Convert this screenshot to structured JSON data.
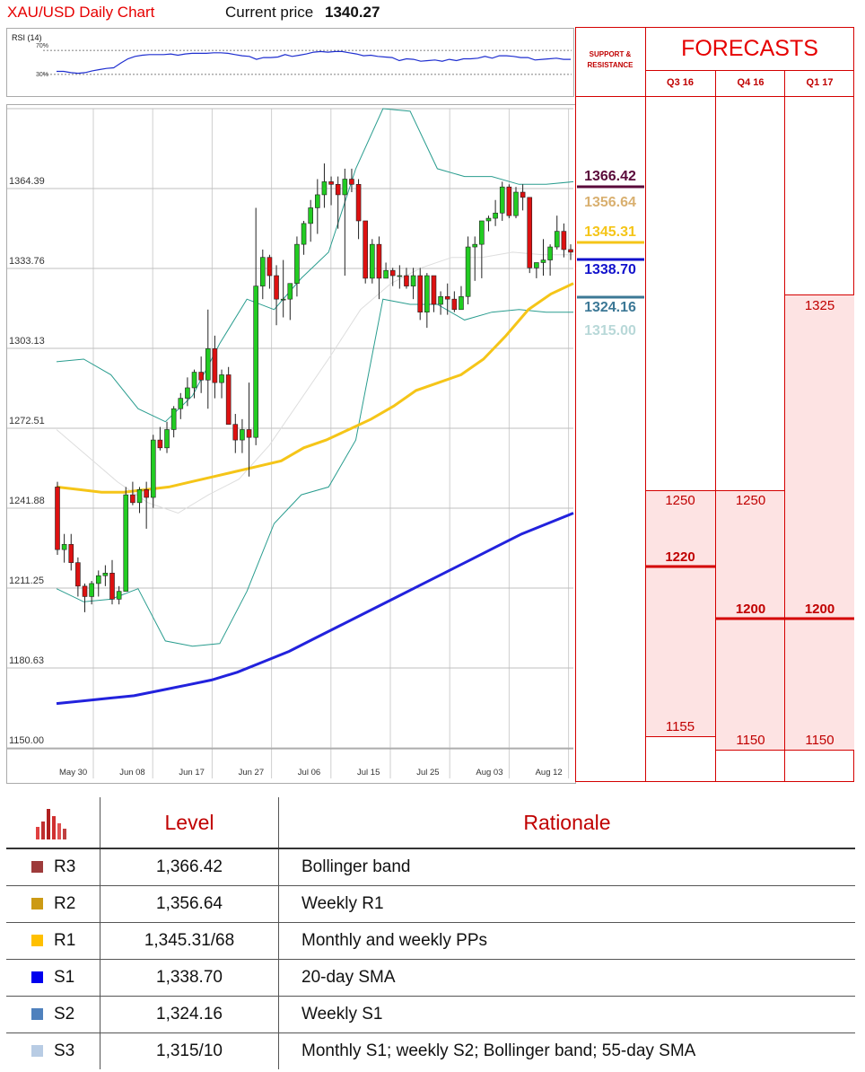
{
  "header": {
    "title": "XAU/USD Daily Chart",
    "price_label": "Current price",
    "price_value": "1340.27"
  },
  "chart_data": [
    {
      "type": "line",
      "title": "RSI (14)",
      "ylim": [
        0,
        100
      ],
      "levels": [
        {
          "label": "70%",
          "value": 70
        },
        {
          "label": "30%",
          "value": 30
        }
      ],
      "series": [
        {
          "name": "RSI (14)",
          "values": [
            35,
            35,
            33,
            32,
            33,
            36,
            38,
            40,
            41,
            49,
            56,
            60,
            62,
            63,
            63,
            63,
            64,
            62,
            64,
            65,
            65,
            65,
            66,
            66,
            65,
            63,
            61,
            60,
            55,
            58,
            58,
            59,
            63,
            60,
            62,
            64,
            67,
            68,
            67,
            68,
            68,
            66,
            64,
            61,
            62,
            60,
            59,
            58,
            53,
            56,
            55,
            52,
            53,
            54,
            52,
            55,
            53,
            56,
            56,
            57,
            60,
            57,
            61,
            61,
            60,
            58,
            58,
            54,
            55,
            56,
            57,
            55,
            55
          ]
        }
      ],
      "color": "#1f2fd0"
    },
    {
      "type": "candlestick",
      "title": "XAU/USD Daily Chart",
      "ylim": [
        1150.0,
        1395.01
      ],
      "yticks": [
        "1395.01",
        "1364.39",
        "1333.76",
        "1303.13",
        "1272.51",
        "1241.88",
        "1211.25",
        "1180.63",
        "1150.00"
      ],
      "xticks": [
        "May 30",
        "Jun 08",
        "Jun 17",
        "Jun 27",
        "Jul 06",
        "Jul 15",
        "Jul 25",
        "Aug 03",
        "Aug 12"
      ],
      "candles": [
        [
          1250,
          1252,
          1224,
          1226
        ],
        [
          1226,
          1232,
          1221,
          1228
        ],
        [
          1228,
          1232,
          1218,
          1221
        ],
        [
          1221,
          1223,
          1208,
          1212
        ],
        [
          1212,
          1213,
          1202,
          1208
        ],
        [
          1208,
          1214,
          1205,
          1213
        ],
        [
          1213,
          1218,
          1208,
          1216
        ],
        [
          1216,
          1220,
          1212,
          1217
        ],
        [
          1217,
          1222,
          1205,
          1207
        ],
        [
          1207,
          1212,
          1205,
          1210
        ],
        [
          1210,
          1250,
          1210,
          1247
        ],
        [
          1247,
          1252,
          1243,
          1244
        ],
        [
          1244,
          1250,
          1240,
          1249
        ],
        [
          1249,
          1252,
          1234,
          1246
        ],
        [
          1246,
          1270,
          1242,
          1268
        ],
        [
          1268,
          1273,
          1264,
          1265
        ],
        [
          1265,
          1275,
          1263,
          1272
        ],
        [
          1272,
          1281,
          1269,
          1280
        ],
        [
          1280,
          1286,
          1276,
          1284
        ],
        [
          1284,
          1292,
          1281,
          1288
        ],
        [
          1288,
          1295,
          1284,
          1294
        ],
        [
          1294,
          1300,
          1286,
          1291
        ],
        [
          1291,
          1318,
          1280,
          1303
        ],
        [
          1303,
          1308,
          1284,
          1290
        ],
        [
          1290,
          1295,
          1284,
          1293
        ],
        [
          1293,
          1296,
          1274,
          1274
        ],
        [
          1274,
          1278,
          1263,
          1268
        ],
        [
          1268,
          1276,
          1263,
          1272
        ],
        [
          1272,
          1290,
          1254,
          1269
        ],
        [
          1269,
          1357,
          1266,
          1327
        ],
        [
          1327,
          1341,
          1322,
          1338
        ],
        [
          1338,
          1339,
          1326,
          1331
        ],
        [
          1331,
          1335,
          1312,
          1322
        ],
        [
          1322,
          1337,
          1315,
          1322
        ],
        [
          1322,
          1328,
          1314,
          1328
        ],
        [
          1328,
          1346,
          1323,
          1343
        ],
        [
          1343,
          1352,
          1339,
          1351
        ],
        [
          1351,
          1360,
          1344,
          1357
        ],
        [
          1357,
          1368,
          1347,
          1362
        ],
        [
          1362,
          1374,
          1357,
          1367
        ],
        [
          1367,
          1369,
          1358,
          1366
        ],
        [
          1366,
          1369,
          1349,
          1362
        ],
        [
          1362,
          1372,
          1331,
          1368
        ],
        [
          1368,
          1372,
          1363,
          1366
        ],
        [
          1366,
          1368,
          1345,
          1352
        ],
        [
          1352,
          1350,
          1328,
          1330
        ],
        [
          1330,
          1345,
          1328,
          1343
        ],
        [
          1343,
          1346,
          1322,
          1330
        ],
        [
          1330,
          1336,
          1330,
          1333
        ],
        [
          1333,
          1334,
          1327,
          1331
        ],
        [
          1331,
          1335,
          1326,
          1331
        ],
        [
          1331,
          1334,
          1326,
          1327
        ],
        [
          1327,
          1334,
          1322,
          1331
        ],
        [
          1331,
          1334,
          1314,
          1317
        ],
        [
          1317,
          1332,
          1311,
          1331
        ],
        [
          1331,
          1331,
          1317,
          1320
        ],
        [
          1320,
          1325,
          1316,
          1323
        ],
        [
          1323,
          1328,
          1316,
          1322
        ],
        [
          1322,
          1325,
          1317,
          1318
        ],
        [
          1318,
          1327,
          1319,
          1323
        ],
        [
          1323,
          1346,
          1320,
          1342
        ],
        [
          1342,
          1346,
          1329,
          1343
        ],
        [
          1343,
          1351,
          1330,
          1352
        ],
        [
          1352,
          1354,
          1348,
          1353
        ],
        [
          1353,
          1360,
          1350,
          1355
        ],
        [
          1355,
          1367,
          1352,
          1365
        ],
        [
          1365,
          1366,
          1353,
          1354
        ],
        [
          1354,
          1365,
          1353,
          1363
        ],
        [
          1363,
          1366,
          1356,
          1361
        ],
        [
          1361,
          1361,
          1332,
          1334
        ],
        [
          1334,
          1336,
          1330,
          1336
        ],
        [
          1336,
          1345,
          1331,
          1337
        ],
        [
          1337,
          1343,
          1331,
          1342
        ],
        [
          1342,
          1354,
          1341,
          1348
        ],
        [
          1348,
          1351,
          1338,
          1341
        ],
        [
          1341,
          1343,
          1337,
          1340
        ]
      ],
      "series": [
        {
          "name": "SMA slow",
          "color": "#2222dd",
          "values": [
            1167,
            1168,
            1169,
            1170,
            1172,
            1174,
            1176,
            1179,
            1183,
            1187,
            1192,
            1197,
            1202,
            1207,
            1212,
            1217,
            1222,
            1227,
            1232,
            1236,
            1240
          ]
        },
        {
          "name": "SMA 55",
          "color": "#f5c518",
          "values": [
            1250,
            1249,
            1248,
            1248,
            1249,
            1250,
            1252,
            1254,
            1256,
            1258,
            1260,
            1265,
            1268,
            1272,
            1276,
            1281,
            1287,
            1290,
            1293,
            1299,
            1308,
            1318,
            1324,
            1328
          ]
        },
        {
          "name": "Bollinger upper",
          "color": "#2a9d8f",
          "values": [
            1298,
            1299,
            1293,
            1280,
            1275,
            1285,
            1305,
            1322,
            1318,
            1330,
            1340,
            1372,
            1395,
            1394,
            1372,
            1369,
            1369,
            1366,
            1366,
            1367
          ]
        },
        {
          "name": "Bollinger lower",
          "color": "#2a9d8f",
          "values": [
            1211,
            1206,
            1207,
            1211,
            1191,
            1189,
            1190,
            1210,
            1236,
            1247,
            1250,
            1268,
            1322,
            1320,
            1320,
            1314,
            1317,
            1318,
            1317,
            1317
          ]
        },
        {
          "name": "SMA 20",
          "color": "#dddddd",
          "values": [
            1272,
            1262,
            1252,
            1244,
            1240,
            1247,
            1253,
            1266,
            1283,
            1300,
            1318,
            1328,
            1334,
            1338,
            1338,
            1340,
            1339,
            1339
          ]
        }
      ]
    }
  ],
  "support_resistance": {
    "heading_line1": "SUPPORT &",
    "heading_line2": "RESISTANCE",
    "levels": [
      {
        "value": "1366.42",
        "color": "#5a0a3a"
      },
      {
        "value": "1356.64",
        "color": "#d9b070"
      },
      {
        "value": "1345.31",
        "color": "#f5c518"
      },
      {
        "value": "1338.70",
        "color": "#1111cc"
      },
      {
        "value": "1324.16",
        "color": "#3c7896"
      },
      {
        "value": "1315.00",
        "color": "#b8d8d8"
      }
    ]
  },
  "forecasts": {
    "title": "FORECASTS",
    "columns": [
      {
        "label": "Q3 16",
        "high": "1250",
        "mid": "1220",
        "low": "1155"
      },
      {
        "label": "Q4 16",
        "high": "1250",
        "mid": "1200",
        "low": "1150"
      },
      {
        "label": "Q1 17",
        "high": "1325",
        "mid": "1200",
        "low": "1150"
      }
    ]
  },
  "table": {
    "header": {
      "level": "Level",
      "rationale": "Rationale"
    },
    "rows": [
      {
        "label": "R3",
        "level": "1,366.42",
        "rationale": "Bollinger band",
        "color": "#9e3b3b"
      },
      {
        "label": "R2",
        "level": "1,356.64",
        "rationale": "Weekly R1",
        "color": "#cc9a14"
      },
      {
        "label": "R1",
        "level": "1,345.31/68",
        "rationale": "Monthly and weekly PPs",
        "color": "#ffc000"
      },
      {
        "label": "S1",
        "level": "1,338.70",
        "rationale": "20-day SMA",
        "color": "#0000ee"
      },
      {
        "label": "S2",
        "level": "1,324.16",
        "rationale": "Weekly S1",
        "color": "#4f81bd"
      },
      {
        "label": "S3",
        "level": "1,315/10",
        "rationale": "Monthly S1; weekly S2; Bollinger band; 55-day SMA",
        "color": "#b8cce4"
      }
    ]
  }
}
